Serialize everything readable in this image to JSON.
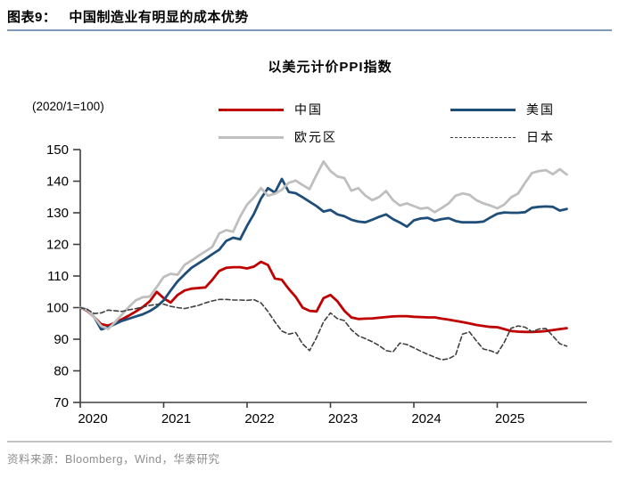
{
  "figure": {
    "label": "图表9：",
    "title": "中国制造业有明显的成本优势"
  },
  "chart": {
    "title": "以美元计价PPI指数",
    "unit_note": "(2020/1=100)"
  },
  "source": {
    "prefix": "资料来源：",
    "text": "Bloomberg，Wind，华泰研究"
  },
  "colors": {
    "china": "#C00000",
    "us": "#1F4E79",
    "eurozone": "#BFBFBF",
    "japan": "#404040",
    "header_rule": "#7d9bb8",
    "axis": "#3f3f3f",
    "source_text": "#8c8c8c"
  },
  "chart_data": {
    "type": "line",
    "title": "以美元计价PPI指数",
    "unit": "(2020/1=100)",
    "x_start": "2020-01",
    "x_interval": "monthly",
    "x_tick_labels": [
      "2020",
      "2021",
      "2022",
      "2023",
      "2024",
      "2025"
    ],
    "y_ticks": [
      70,
      80,
      90,
      100,
      110,
      120,
      130,
      140,
      150
    ],
    "ylim": [
      70,
      150
    ],
    "grid": false,
    "legend_position": "top",
    "series": [
      {
        "name": "中国",
        "color": "#C00000",
        "style": "solid",
        "values": [
          100,
          99,
          97,
          94.8,
          94.3,
          95.2,
          96.3,
          97.5,
          98.8,
          100.2,
          102,
          105,
          103,
          101.6,
          104,
          105.4,
          106,
          106.2,
          106.4,
          108.8,
          111.6,
          112.6,
          112.8,
          112.8,
          112.4,
          113,
          114.5,
          113.5,
          109.2,
          108.8,
          105.9,
          103.4,
          100,
          99,
          98.8,
          103,
          104,
          102,
          99,
          96.9,
          96.4,
          96.5,
          96.6,
          96.8,
          97,
          97.2,
          97.3,
          97.3,
          97.1,
          97,
          96.9,
          96.9,
          96.5,
          96.2,
          95.8,
          95.4,
          95,
          94.5,
          94.2,
          93.9,
          93.8,
          93.2,
          92.6,
          92.4,
          92.3,
          92.3,
          92.4,
          92.6,
          92.9,
          93.2,
          93.5
        ]
      },
      {
        "name": "美国",
        "color": "#1F4E79",
        "style": "solid",
        "values": [
          100,
          99.3,
          97,
          93.1,
          93.8,
          94.8,
          95.8,
          96.5,
          97.2,
          97.9,
          98.9,
          100.3,
          102.3,
          105.4,
          108.3,
          110.5,
          112.6,
          114,
          115.4,
          116.9,
          118.3,
          121.1,
          122.1,
          121.6,
          125.9,
          129.7,
          134.5,
          137.8,
          136.4,
          140.7,
          136.6,
          136.2,
          134.9,
          133.5,
          132.1,
          130.4,
          130.9,
          129.5,
          128.9,
          127.8,
          127.2,
          127,
          127.8,
          128.7,
          129.5,
          128,
          126.9,
          125.6,
          127.6,
          128.2,
          128.4,
          127.5,
          128,
          128.3,
          127.4,
          127,
          127,
          127,
          127.2,
          128.5,
          129.7,
          130.1,
          130,
          130,
          130.2,
          131.6,
          131.9,
          132,
          131.9,
          130.7,
          131.2
        ]
      },
      {
        "name": "欧元区",
        "color": "#BFBFBF",
        "style": "solid",
        "values": [
          100,
          99.2,
          97,
          94.2,
          93.2,
          95.4,
          97.8,
          100.2,
          102.3,
          103.3,
          103.5,
          106.5,
          109.7,
          110.7,
          110.4,
          113.5,
          114.9,
          116.4,
          117.8,
          119.2,
          123.5,
          124.5,
          124,
          128.8,
          132.6,
          134.9,
          137.8,
          135.4,
          136,
          137.3,
          139.5,
          140.2,
          138.8,
          137.5,
          142,
          146.2,
          143.2,
          141.5,
          141,
          137,
          137.8,
          135.5,
          134,
          135,
          136.9,
          134,
          132.3,
          133,
          132.1,
          131.3,
          131.6,
          130.2,
          131.5,
          133,
          135.4,
          136.1,
          135.7,
          134,
          133,
          132.3,
          131.4,
          132.6,
          134.9,
          136.1,
          139.5,
          142.6,
          143.2,
          143.5,
          142.2,
          143.8,
          142.1
        ]
      },
      {
        "name": "日本",
        "color": "#404040",
        "style": "dashed",
        "values": [
          100,
          99.4,
          98.1,
          98.3,
          99.2,
          99,
          98.8,
          99.3,
          99.7,
          100.2,
          100.7,
          101,
          101.1,
          100.4,
          100,
          99.7,
          100.2,
          100.7,
          101.5,
          102.1,
          102.6,
          102.6,
          102.4,
          102.4,
          102.3,
          102.5,
          101.5,
          98.8,
          95.5,
          92.6,
          91.6,
          92.1,
          88.5,
          86.4,
          90.5,
          95.5,
          98.3,
          96.5,
          95.9,
          93,
          91.1,
          90.2,
          89.2,
          88,
          86.4,
          86,
          88.8,
          88.3,
          87.3,
          86.2,
          85.2,
          84.3,
          83.5,
          83.8,
          85,
          91.6,
          92.3,
          89.5,
          86.9,
          86.4,
          85.5,
          89,
          93.5,
          94.2,
          93.8,
          92.4,
          93.2,
          93.4,
          91,
          88.6,
          87.8
        ]
      }
    ]
  }
}
